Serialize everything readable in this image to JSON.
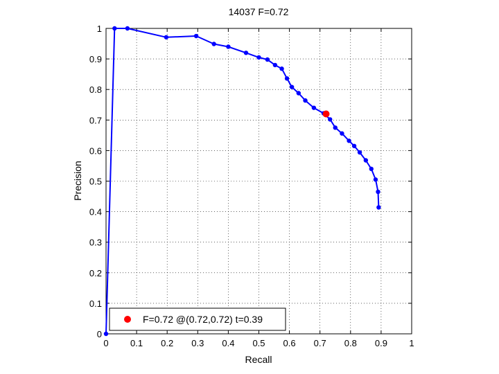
{
  "chart_data": {
    "type": "line",
    "title": "14037 F=0.72",
    "xlabel": "Recall",
    "ylabel": "Precision",
    "xlim": [
      0,
      1
    ],
    "ylim": [
      0,
      1
    ],
    "grid": true,
    "xticks": [
      "0",
      "0.1",
      "0.2",
      "0.3",
      "0.4",
      "0.5",
      "0.6",
      "0.7",
      "0.8",
      "0.9",
      "1"
    ],
    "yticks": [
      "0",
      "0.1",
      "0.2",
      "0.3",
      "0.4",
      "0.5",
      "0.6",
      "0.7",
      "0.8",
      "0.9",
      "1"
    ],
    "series": [
      {
        "color": "#0000ff",
        "points": [
          [
            0.0,
            0.0
          ],
          [
            0.028,
            1.0
          ],
          [
            0.07,
            1.0
          ],
          [
            0.197,
            0.971
          ],
          [
            0.295,
            0.975
          ],
          [
            0.353,
            0.949
          ],
          [
            0.4,
            0.94
          ],
          [
            0.458,
            0.92
          ],
          [
            0.5,
            0.905
          ],
          [
            0.528,
            0.898
          ],
          [
            0.553,
            0.88
          ],
          [
            0.575,
            0.868
          ],
          [
            0.592,
            0.836
          ],
          [
            0.608,
            0.808
          ],
          [
            0.63,
            0.788
          ],
          [
            0.652,
            0.764
          ],
          [
            0.68,
            0.74
          ],
          [
            0.712,
            0.722
          ],
          [
            0.733,
            0.702
          ],
          [
            0.75,
            0.675
          ],
          [
            0.772,
            0.656
          ],
          [
            0.795,
            0.632
          ],
          [
            0.812,
            0.615
          ],
          [
            0.83,
            0.594
          ],
          [
            0.85,
            0.568
          ],
          [
            0.868,
            0.54
          ],
          [
            0.882,
            0.505
          ],
          [
            0.89,
            0.465
          ],
          [
            0.892,
            0.414
          ]
        ]
      }
    ],
    "highlight": {
      "recall": 0.72,
      "precision": 0.72,
      "color": "#ff0000"
    },
    "legend": {
      "placement": "bottom-left",
      "text": "F=0.72 @(0.72,0.72) t=0.39"
    }
  }
}
